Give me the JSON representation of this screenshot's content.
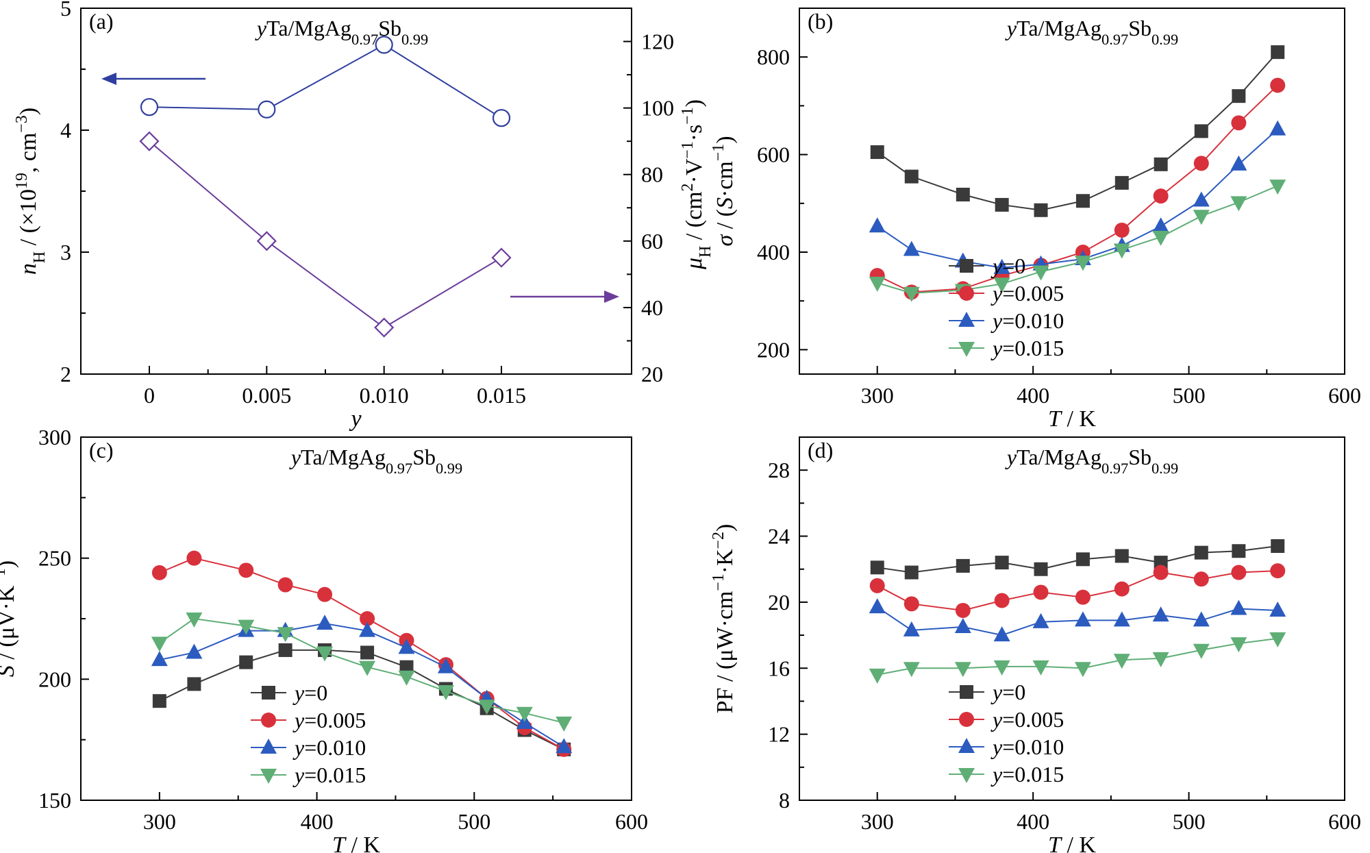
{
  "chart_data": [
    {
      "panel": "(a)",
      "type": "line",
      "title": "yTa/MgAg0.97Sb0.99",
      "xlabel": "y",
      "ylabel": "nH / (×10^19, cm^-3)",
      "ylabel_right": "μH / (cm^2·V^-1·s^-1)",
      "categories": [
        "0",
        "0.005",
        "0.010",
        "0.015"
      ],
      "ylim": [
        2,
        5
      ],
      "yticks": [
        2,
        3,
        4,
        5
      ],
      "ylim_right": [
        20,
        130
      ],
      "yticks_right": [
        20,
        40,
        60,
        80,
        100,
        120
      ],
      "series": [
        {
          "axis": "left",
          "color": "#2f3f9e",
          "marker": "circle-open",
          "values": [
            4.19,
            4.17,
            4.7,
            4.1
          ]
        },
        {
          "axis": "right",
          "color": "#6a3d9a",
          "marker": "diamond-open",
          "values": [
            90,
            60,
            34,
            55
          ]
        }
      ]
    },
    {
      "panel": "(b)",
      "type": "line",
      "title": "yTa/MgAg0.97Sb0.99",
      "xlabel": "T / K",
      "ylabel": "σ / (S·cm^-1)",
      "xlim": [
        250,
        600
      ],
      "xticks": [
        300,
        400,
        500,
        600
      ],
      "ylim": [
        150,
        900
      ],
      "yticks": [
        200,
        400,
        600,
        800
      ],
      "x": [
        300,
        322,
        355,
        380,
        405,
        432,
        457,
        482,
        508,
        532,
        557
      ],
      "series": [
        {
          "name": "y=0",
          "color": "#3a3a3a",
          "marker": "square",
          "values": [
            605,
            555,
            518,
            497,
            486,
            505,
            542,
            580,
            648,
            720,
            810
          ]
        },
        {
          "name": "y=0.005",
          "color": "#d8313c",
          "marker": "circle",
          "values": [
            352,
            318,
            325,
            352,
            373,
            400,
            445,
            515,
            582,
            665,
            742
          ]
        },
        {
          "name": "y=0.010",
          "color": "#2b5bbf",
          "marker": "triangle-up",
          "values": [
            453,
            405,
            381,
            368,
            375,
            386,
            413,
            453,
            506,
            580,
            652
          ]
        },
        {
          "name": "y=0.015",
          "color": "#5fae76",
          "marker": "triangle-down",
          "values": [
            337,
            316,
            322,
            335,
            360,
            380,
            405,
            431,
            474,
            502,
            536
          ]
        }
      ]
    },
    {
      "panel": "(c)",
      "type": "line",
      "title": "yTa/MgAg0.97Sb0.99",
      "xlabel": "T / K",
      "ylabel": "S / (μV·K^-1)",
      "xlim": [
        250,
        600
      ],
      "xticks": [
        300,
        400,
        500,
        600
      ],
      "ylim": [
        150,
        300
      ],
      "yticks": [
        150,
        200,
        250,
        300
      ],
      "x": [
        300,
        322,
        355,
        380,
        405,
        432,
        457,
        482,
        508,
        532,
        557
      ],
      "series": [
        {
          "name": "y=0",
          "color": "#3a3a3a",
          "marker": "square",
          "values": [
            191,
            198,
            207,
            212,
            212,
            211,
            205,
            196,
            188,
            179,
            171
          ]
        },
        {
          "name": "y=0.005",
          "color": "#d8313c",
          "marker": "circle",
          "values": [
            244,
            250,
            245,
            239,
            235,
            225,
            216,
            206,
            192,
            180,
            171
          ]
        },
        {
          "name": "y=0.010",
          "color": "#2b5bbf",
          "marker": "triangle-up",
          "values": [
            208,
            211,
            220,
            220,
            223,
            220,
            213,
            205,
            192,
            182,
            172
          ]
        },
        {
          "name": "y=0.015",
          "color": "#5fae76",
          "marker": "triangle-down",
          "values": [
            215,
            225,
            222,
            219,
            211,
            205,
            201,
            195,
            189,
            186,
            182
          ]
        }
      ]
    },
    {
      "panel": "(d)",
      "type": "line",
      "title": "yTa/MgAg0.97Sb0.99",
      "xlabel": "T / K",
      "ylabel": "PF / (μW·cm^-1·K^-2)",
      "xlim": [
        250,
        600
      ],
      "xticks": [
        300,
        400,
        500,
        600
      ],
      "ylim": [
        8,
        30
      ],
      "yticks": [
        8,
        12,
        16,
        20,
        24,
        28
      ],
      "x": [
        300,
        322,
        355,
        380,
        405,
        432,
        457,
        482,
        508,
        532,
        557
      ],
      "series": [
        {
          "name": "y=0",
          "color": "#3a3a3a",
          "marker": "square",
          "values": [
            22.1,
            21.8,
            22.2,
            22.4,
            22.0,
            22.6,
            22.8,
            22.4,
            23.0,
            23.1,
            23.4
          ]
        },
        {
          "name": "y=0.005",
          "color": "#d8313c",
          "marker": "circle",
          "values": [
            21.0,
            19.9,
            19.5,
            20.1,
            20.6,
            20.3,
            20.8,
            21.8,
            21.4,
            21.8,
            21.9
          ]
        },
        {
          "name": "y=0.010",
          "color": "#2b5bbf",
          "marker": "triangle-up",
          "values": [
            19.7,
            18.3,
            18.5,
            18.0,
            18.8,
            18.9,
            18.9,
            19.2,
            18.9,
            19.6,
            19.5
          ]
        },
        {
          "name": "y=0.015",
          "color": "#5fae76",
          "marker": "triangle-down",
          "values": [
            15.6,
            16.0,
            16.0,
            16.1,
            16.1,
            16.0,
            16.5,
            16.6,
            17.1,
            17.5,
            17.8
          ]
        }
      ]
    }
  ]
}
